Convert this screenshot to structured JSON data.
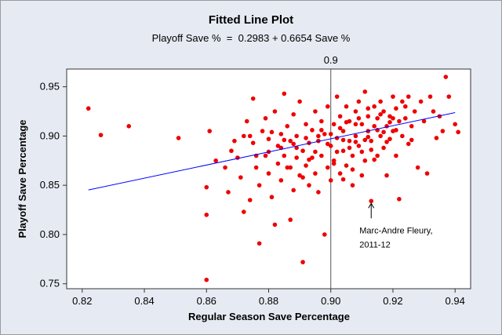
{
  "chart_data": {
    "type": "scatter",
    "title": "Fitted Line Plot",
    "subtitle": "Playoff Save %  =  0.2983 + 0.6654 Save %",
    "xlabel": "Regular Season Save Percentage",
    "ylabel": "Playoff Save Percentage",
    "xlim": [
      0.815,
      0.945
    ],
    "ylim": [
      0.745,
      0.968
    ],
    "x_ticks": [
      "0.82",
      "0.84",
      "0.86",
      "0.88",
      "0.90",
      "0.92",
      "0.94"
    ],
    "y_ticks": [
      "0.75",
      "0.80",
      "0.85",
      "0.90",
      "0.95"
    ],
    "grid": false,
    "reference_line": {
      "x": 0.9,
      "label": "0.9"
    },
    "fit": {
      "intercept": 0.2983,
      "slope": 0.6654,
      "x_range": [
        0.822,
        0.94
      ]
    },
    "annotation": {
      "line1": "Marc-Andre Fleury,",
      "line2": "2011-12",
      "x": 0.913,
      "y": 0.834
    },
    "colors": {
      "points": "#ee0000",
      "fit_line": "#0000ff",
      "reference_line": "#555555",
      "plot_background": "#ffffff",
      "frame_background": "#e6ebf3"
    },
    "series": [
      {
        "points": [
          [
            0.822,
            0.928
          ],
          [
            0.826,
            0.901
          ],
          [
            0.835,
            0.91
          ],
          [
            0.851,
            0.898
          ],
          [
            0.86,
            0.754
          ],
          [
            0.86,
            0.82
          ],
          [
            0.86,
            0.848
          ],
          [
            0.861,
            0.905
          ],
          [
            0.863,
            0.875
          ],
          [
            0.866,
            0.868
          ],
          [
            0.867,
            0.843
          ],
          [
            0.868,
            0.885
          ],
          [
            0.869,
            0.895
          ],
          [
            0.87,
            0.878
          ],
          [
            0.871,
            0.858
          ],
          [
            0.872,
            0.823
          ],
          [
            0.872,
            0.9
          ],
          [
            0.873,
            0.915
          ],
          [
            0.874,
            0.835
          ],
          [
            0.875,
            0.938
          ],
          [
            0.875,
            0.893
          ],
          [
            0.876,
            0.868
          ],
          [
            0.877,
            0.791
          ],
          [
            0.877,
            0.85
          ],
          [
            0.878,
            0.905
          ],
          [
            0.879,
            0.88
          ],
          [
            0.879,
            0.918
          ],
          [
            0.88,
            0.862
          ],
          [
            0.88,
            0.897
          ],
          [
            0.881,
            0.838
          ],
          [
            0.882,
            0.81
          ],
          [
            0.882,
            0.925
          ],
          [
            0.883,
            0.872
          ],
          [
            0.883,
            0.89
          ],
          [
            0.884,
            0.855
          ],
          [
            0.884,
            0.902
          ],
          [
            0.885,
            0.88
          ],
          [
            0.885,
            0.943
          ],
          [
            0.886,
            0.868
          ],
          [
            0.886,
            0.91
          ],
          [
            0.887,
            0.815
          ],
          [
            0.887,
            0.895
          ],
          [
            0.888,
            0.845
          ],
          [
            0.888,
            0.922
          ],
          [
            0.889,
            0.878
          ],
          [
            0.889,
            0.9
          ],
          [
            0.89,
            0.86
          ],
          [
            0.89,
            0.935
          ],
          [
            0.891,
            0.885
          ],
          [
            0.891,
            0.772
          ],
          [
            0.892,
            0.87
          ],
          [
            0.892,
            0.912
          ],
          [
            0.893,
            0.893
          ],
          [
            0.893,
            0.85
          ],
          [
            0.894,
            0.906
          ],
          [
            0.894,
            0.878
          ],
          [
            0.895,
            0.925
          ],
          [
            0.895,
            0.862
          ],
          [
            0.896,
            0.895
          ],
          [
            0.896,
            0.843
          ],
          [
            0.897,
            0.915
          ],
          [
            0.897,
            0.88
          ],
          [
            0.898,
            0.8
          ],
          [
            0.898,
            0.902
          ],
          [
            0.899,
            0.868
          ],
          [
            0.899,
            0.93
          ],
          [
            0.9,
            0.89
          ],
          [
            0.9,
            0.855
          ],
          [
            0.901,
            0.912
          ],
          [
            0.901,
            0.875
          ],
          [
            0.902,
            0.94
          ],
          [
            0.902,
            0.898
          ],
          [
            0.903,
            0.862
          ],
          [
            0.903,
            0.92
          ],
          [
            0.904,
            0.885
          ],
          [
            0.904,
            0.905
          ],
          [
            0.905,
            0.87
          ],
          [
            0.905,
            0.93
          ],
          [
            0.906,
            0.895
          ],
          [
            0.906,
            0.915
          ],
          [
            0.907,
            0.88
          ],
          [
            0.907,
            0.85
          ],
          [
            0.908,
            0.925
          ],
          [
            0.908,
            0.9
          ],
          [
            0.909,
            0.89
          ],
          [
            0.909,
            0.935
          ],
          [
            0.91,
            0.86
          ],
          [
            0.91,
            0.912
          ],
          [
            0.911,
            0.875
          ],
          [
            0.911,
            0.945
          ],
          [
            0.912,
            0.905
          ],
          [
            0.912,
            0.92
          ],
          [
            0.913,
            0.834
          ],
          [
            0.913,
            0.895
          ],
          [
            0.914,
            0.93
          ],
          [
            0.914,
            0.91
          ],
          [
            0.915,
            0.88
          ],
          [
            0.915,
            0.918
          ],
          [
            0.916,
            0.9
          ],
          [
            0.916,
            0.935
          ],
          [
            0.917,
            0.888
          ],
          [
            0.917,
            0.925
          ],
          [
            0.918,
            0.86
          ],
          [
            0.918,
            0.91
          ],
          [
            0.919,
            0.92
          ],
          [
            0.919,
            0.897
          ],
          [
            0.92,
            0.94
          ],
          [
            0.92,
            0.905
          ],
          [
            0.921,
            0.88
          ],
          [
            0.921,
            0.928
          ],
          [
            0.922,
            0.915
          ],
          [
            0.922,
            0.836
          ],
          [
            0.923,
            0.9
          ],
          [
            0.923,
            0.935
          ],
          [
            0.924,
            0.918
          ],
          [
            0.925,
            0.892
          ],
          [
            0.925,
            0.94
          ],
          [
            0.926,
            0.91
          ],
          [
            0.927,
            0.925
          ],
          [
            0.928,
            0.868
          ],
          [
            0.929,
            0.935
          ],
          [
            0.93,
            0.915
          ],
          [
            0.931,
            0.862
          ],
          [
            0.932,
            0.94
          ],
          [
            0.933,
            0.925
          ],
          [
            0.934,
            0.898
          ],
          [
            0.935,
            0.92
          ],
          [
            0.936,
            0.905
          ],
          [
            0.937,
            0.96
          ],
          [
            0.938,
            0.94
          ],
          [
            0.94,
            0.912
          ],
          [
            0.941,
            0.904
          ],
          [
            0.901,
            0.872
          ],
          [
            0.906,
            0.888
          ],
          [
            0.911,
            0.896
          ],
          [
            0.915,
            0.906
          ],
          [
            0.918,
            0.894
          ],
          [
            0.903,
            0.908
          ],
          [
            0.908,
            0.912
          ],
          [
            0.913,
            0.886
          ],
          [
            0.919,
            0.914
          ],
          [
            0.924,
            0.93
          ],
          [
            0.897,
            0.906
          ],
          [
            0.893,
            0.876
          ],
          [
            0.889,
            0.888
          ],
          [
            0.885,
            0.896
          ],
          [
            0.881,
            0.904
          ],
          [
            0.887,
            0.868
          ],
          [
            0.891,
            0.858
          ],
          [
            0.895,
            0.884
          ],
          [
            0.899,
            0.892
          ],
          [
            0.902,
            0.884
          ],
          [
            0.905,
            0.914
          ],
          [
            0.909,
            0.918
          ],
          [
            0.912,
            0.928
          ],
          [
            0.916,
            0.922
          ],
          [
            0.92,
            0.918
          ],
          [
            0.914,
            0.876
          ],
          [
            0.91,
            0.884
          ],
          [
            0.907,
            0.866
          ],
          [
            0.904,
            0.856
          ],
          [
            0.926,
            0.896
          ],
          [
            0.921,
            0.906
          ],
          [
            0.917,
            0.904
          ],
          [
            0.912,
            0.899
          ],
          [
            0.908,
            0.894
          ],
          [
            0.904,
            0.896
          ],
          [
            0.9,
            0.902
          ],
          [
            0.896,
            0.9
          ],
          [
            0.892,
            0.898
          ],
          [
            0.888,
            0.892
          ],
          [
            0.884,
            0.888
          ],
          [
            0.88,
            0.884
          ],
          [
            0.876,
            0.88
          ],
          [
            0.874,
            0.9
          ]
        ]
      }
    ]
  }
}
